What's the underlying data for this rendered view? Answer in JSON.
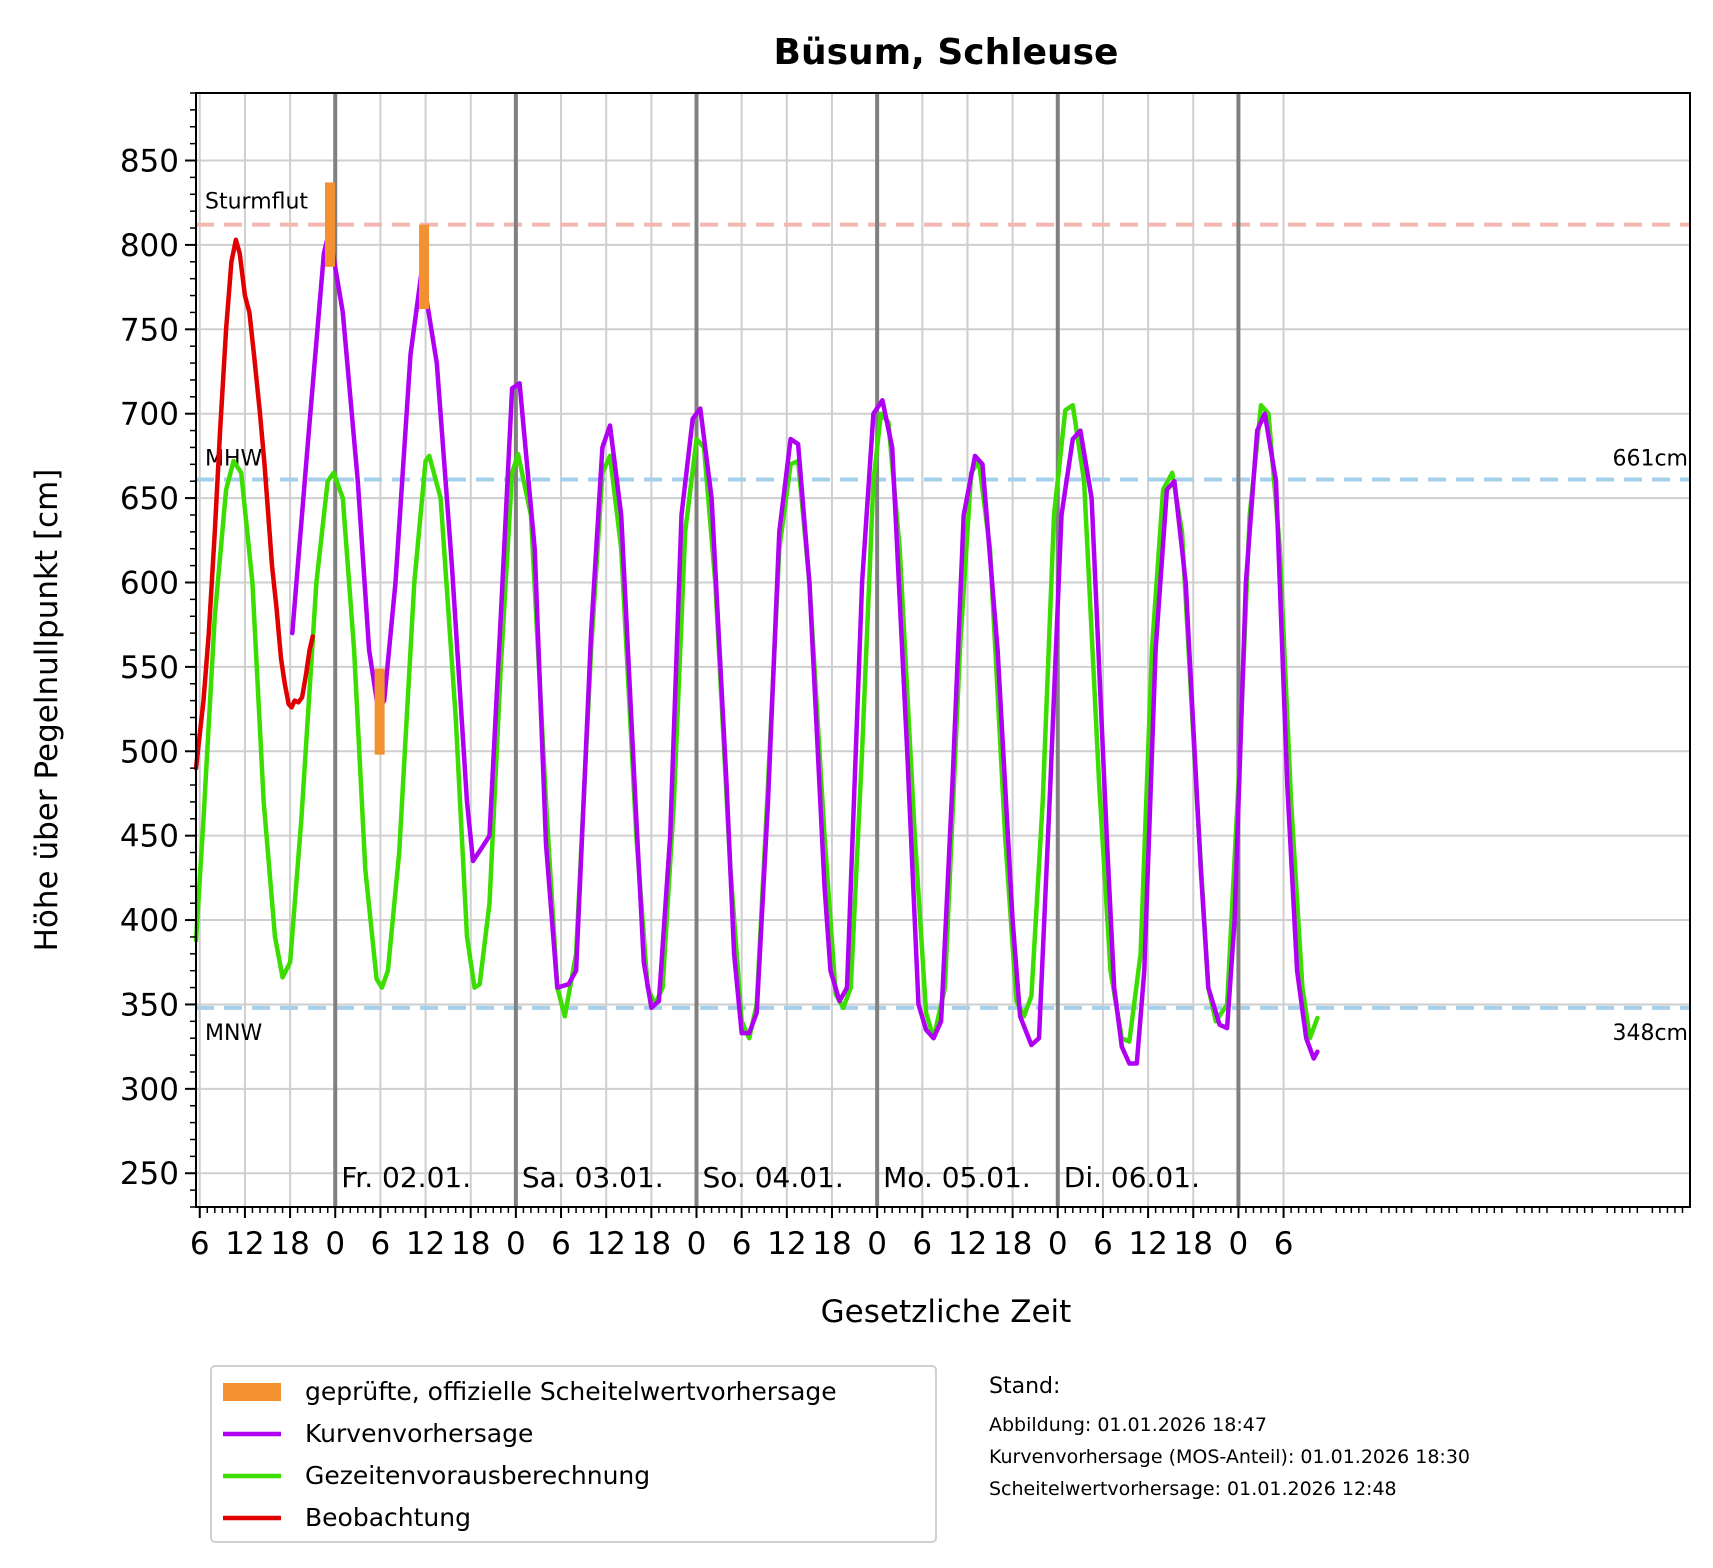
{
  "chart_data": {
    "type": "line",
    "title": "Büsum, Schleuse",
    "xlabel": "Gesetzliche Zeit",
    "ylabel": "Höhe über Pegelnullpunkt [cm]",
    "x_unit": "hours since 01.01. 00:00",
    "xlim": [
      5.5,
      204
    ],
    "ylim": [
      230,
      890
    ],
    "y_ticks": [
      250,
      300,
      350,
      400,
      450,
      500,
      550,
      600,
      650,
      700,
      750,
      800,
      850
    ],
    "x_ticks": [
      {
        "x": 6,
        "label": "6"
      },
      {
        "x": 12,
        "label": "12"
      },
      {
        "x": 18,
        "label": "18"
      },
      {
        "x": 24,
        "label": "0"
      },
      {
        "x": 30,
        "label": "6"
      },
      {
        "x": 36,
        "label": "12"
      },
      {
        "x": 42,
        "label": "18"
      },
      {
        "x": 48,
        "label": "0"
      },
      {
        "x": 54,
        "label": "6"
      },
      {
        "x": 60,
        "label": "12"
      },
      {
        "x": 66,
        "label": "18"
      },
      {
        "x": 72,
        "label": "0"
      },
      {
        "x": 78,
        "label": "6"
      },
      {
        "x": 84,
        "label": "12"
      },
      {
        "x": 90,
        "label": "18"
      },
      {
        "x": 96,
        "label": "0"
      },
      {
        "x": 102,
        "label": "6"
      },
      {
        "x": 108,
        "label": "12"
      },
      {
        "x": 114,
        "label": "18"
      },
      {
        "x": 120,
        "label": "0"
      },
      {
        "x": 126,
        "label": "6"
      },
      {
        "x": 132,
        "label": "12"
      },
      {
        "x": 138,
        "label": "18"
      },
      {
        "x": 144,
        "label": "0"
      },
      {
        "x": 150,
        "label": "6"
      }
    ],
    "day_labels": [
      {
        "x": 24,
        "label": "Fr. 02.01."
      },
      {
        "x": 48,
        "label": "Sa. 03.01."
      },
      {
        "x": 72,
        "label": "So. 04.01."
      },
      {
        "x": 96,
        "label": "Mo. 05.01."
      },
      {
        "x": 120,
        "label": "Di. 06.01."
      }
    ],
    "grid": true,
    "reference_lines": [
      {
        "name": "Sturmflut",
        "y": 812,
        "color": "#f4b6b1",
        "label": "Sturmflut",
        "right_label": ""
      },
      {
        "name": "MHW",
        "y": 661,
        "color": "#a6cfeb",
        "label": "MHW",
        "right_label": "661cm"
      },
      {
        "name": "MNW",
        "y": 348,
        "color": "#a6cfeb",
        "label": "MNW",
        "right_label": "348cm"
      }
    ],
    "series": [
      {
        "name": "Kurvenvorhersage",
        "color": "#b000f4",
        "points": [
          [
            18.3,
            570
          ],
          [
            20.5,
            690
          ],
          [
            22.5,
            795
          ],
          [
            23.2,
            808
          ],
          [
            25,
            760
          ],
          [
            27,
            660
          ],
          [
            28.5,
            560
          ],
          [
            29.7,
            525
          ],
          [
            30.5,
            530
          ],
          [
            32,
            600
          ],
          [
            34,
            735
          ],
          [
            35.5,
            785
          ],
          [
            37.5,
            730
          ],
          [
            39.5,
            610
          ],
          [
            41.5,
            470
          ],
          [
            42.3,
            435
          ],
          [
            43.5,
            443
          ],
          [
            44.5,
            450
          ],
          [
            46,
            580
          ],
          [
            47.5,
            715
          ],
          [
            48.5,
            718
          ],
          [
            50.5,
            620
          ],
          [
            52,
            445
          ],
          [
            53.5,
            360
          ],
          [
            55,
            362
          ],
          [
            56,
            370
          ],
          [
            58,
            570
          ],
          [
            59.5,
            680
          ],
          [
            60.5,
            693
          ],
          [
            62,
            640
          ],
          [
            64,
            460
          ],
          [
            65,
            375
          ],
          [
            66,
            348
          ],
          [
            67,
            352
          ],
          [
            68.5,
            450
          ],
          [
            70,
            640
          ],
          [
            71.5,
            697
          ],
          [
            72.5,
            703
          ],
          [
            74,
            650
          ],
          [
            76,
            480
          ],
          [
            77,
            380
          ],
          [
            78,
            333
          ],
          [
            79,
            333
          ],
          [
            80,
            345
          ],
          [
            81.5,
            470
          ],
          [
            83,
            630
          ],
          [
            84.5,
            685
          ],
          [
            85.5,
            682
          ],
          [
            87,
            600
          ],
          [
            89,
            420
          ],
          [
            89.8,
            370
          ],
          [
            91,
            352
          ],
          [
            92,
            360
          ],
          [
            94,
            600
          ],
          [
            95.5,
            700
          ],
          [
            96.7,
            708
          ],
          [
            98,
            680
          ],
          [
            100,
            500
          ],
          [
            101.5,
            350
          ],
          [
            102.5,
            335
          ],
          [
            103.5,
            330
          ],
          [
            104.5,
            340
          ],
          [
            106,
            480
          ],
          [
            107.5,
            640
          ],
          [
            109,
            675
          ],
          [
            110,
            670
          ],
          [
            112,
            560
          ],
          [
            114,
            400
          ],
          [
            115,
            343
          ],
          [
            116.5,
            326
          ],
          [
            117.5,
            330
          ],
          [
            119,
            480
          ],
          [
            120.5,
            640
          ],
          [
            122,
            685
          ],
          [
            123,
            690
          ],
          [
            124.5,
            650
          ],
          [
            126.5,
            450
          ],
          [
            127.5,
            360
          ],
          [
            128.5,
            325
          ],
          [
            129.5,
            315
          ],
          [
            130.5,
            315
          ],
          [
            131.5,
            370
          ],
          [
            133,
            560
          ],
          [
            134.5,
            655
          ],
          [
            135.5,
            660
          ],
          [
            137,
            600
          ],
          [
            139,
            430
          ],
          [
            140,
            360
          ],
          [
            141.5,
            338
          ],
          [
            142.5,
            336
          ],
          [
            143.5,
            400
          ],
          [
            145,
            600
          ],
          [
            146.5,
            690
          ],
          [
            147.5,
            700
          ],
          [
            149,
            660
          ],
          [
            150.5,
            480
          ],
          [
            151.8,
            370
          ],
          [
            153,
            330
          ],
          [
            154,
            318
          ],
          [
            154.5,
            322
          ]
        ]
      },
      {
        "name": "Gezeitenvorausberechnung",
        "color": "#3cdd00",
        "points": [
          [
            5.5,
            388
          ],
          [
            6.5,
            460
          ],
          [
            8,
            580
          ],
          [
            9.5,
            655
          ],
          [
            10.5,
            672
          ],
          [
            11.5,
            665
          ],
          [
            13,
            600
          ],
          [
            14.5,
            470
          ],
          [
            16,
            390
          ],
          [
            17,
            366
          ],
          [
            18,
            375
          ],
          [
            19.5,
            460
          ],
          [
            21.5,
            600
          ],
          [
            23,
            660
          ],
          [
            23.8,
            665
          ],
          [
            25,
            650
          ],
          [
            26.5,
            560
          ],
          [
            28,
            430
          ],
          [
            29.5,
            365
          ],
          [
            30.2,
            360
          ],
          [
            31,
            370
          ],
          [
            32.5,
            440
          ],
          [
            34.5,
            600
          ],
          [
            36,
            672
          ],
          [
            36.5,
            675
          ],
          [
            38,
            650
          ],
          [
            40,
            520
          ],
          [
            41.5,
            390
          ],
          [
            42.5,
            360
          ],
          [
            43.2,
            362
          ],
          [
            44.5,
            410
          ],
          [
            46,
            550
          ],
          [
            47.5,
            665
          ],
          [
            48.3,
            676
          ],
          [
            50,
            640
          ],
          [
            52,
            470
          ],
          [
            53.5,
            360
          ],
          [
            54.5,
            343
          ],
          [
            56,
            380
          ],
          [
            58,
            560
          ],
          [
            59.5,
            665
          ],
          [
            60.5,
            675
          ],
          [
            62,
            620
          ],
          [
            64,
            450
          ],
          [
            65.5,
            360
          ],
          [
            66.5,
            350
          ],
          [
            67.5,
            360
          ],
          [
            69,
            470
          ],
          [
            70.5,
            630
          ],
          [
            72,
            685
          ],
          [
            73,
            680
          ],
          [
            74.5,
            600
          ],
          [
            76.5,
            430
          ],
          [
            78,
            340
          ],
          [
            79,
            330
          ],
          [
            80,
            350
          ],
          [
            81.5,
            480
          ],
          [
            83,
            620
          ],
          [
            84.5,
            670
          ],
          [
            85.5,
            672
          ],
          [
            87,
            600
          ],
          [
            89,
            450
          ],
          [
            90.5,
            356
          ],
          [
            91.5,
            348
          ],
          [
            92.5,
            360
          ],
          [
            94,
            500
          ],
          [
            95.5,
            660
          ],
          [
            96.5,
            700
          ],
          [
            97.5,
            695
          ],
          [
            99,
            620
          ],
          [
            101,
            450
          ],
          [
            102.5,
            345
          ],
          [
            103.5,
            330
          ],
          [
            105,
            360
          ],
          [
            107,
            560
          ],
          [
            108.5,
            665
          ],
          [
            109.5,
            672
          ],
          [
            111,
            620
          ],
          [
            113,
            450
          ],
          [
            114.5,
            352
          ],
          [
            115.5,
            343
          ],
          [
            116.5,
            355
          ],
          [
            118,
            470
          ],
          [
            119.5,
            640
          ],
          [
            121,
            702
          ],
          [
            122,
            705
          ],
          [
            123.5,
            660
          ],
          [
            125.5,
            480
          ],
          [
            127,
            370
          ],
          [
            128.5,
            330
          ],
          [
            129.5,
            328
          ],
          [
            131,
            380
          ],
          [
            132.5,
            560
          ],
          [
            134,
            655
          ],
          [
            135.2,
            665
          ],
          [
            136.5,
            630
          ],
          [
            138.5,
            470
          ],
          [
            140,
            360
          ],
          [
            141,
            340
          ],
          [
            142.5,
            350
          ],
          [
            144,
            480
          ],
          [
            145.5,
            640
          ],
          [
            147,
            705
          ],
          [
            148,
            700
          ],
          [
            149.5,
            620
          ],
          [
            151,
            470
          ],
          [
            152.5,
            360
          ],
          [
            153.5,
            330
          ],
          [
            154.5,
            342
          ]
        ]
      },
      {
        "name": "Beobachtung",
        "color": "#e00000",
        "points": [
          [
            5.5,
            490
          ],
          [
            6.5,
            530
          ],
          [
            7.2,
            570
          ],
          [
            8,
            630
          ],
          [
            8.7,
            690
          ],
          [
            9.5,
            750
          ],
          [
            10.2,
            790
          ],
          [
            10.8,
            803
          ],
          [
            11.3,
            795
          ],
          [
            12,
            770
          ],
          [
            12.6,
            760
          ],
          [
            13.2,
            735
          ],
          [
            14,
            700
          ],
          [
            14.6,
            670
          ],
          [
            15.1,
            640
          ],
          [
            15.6,
            610
          ],
          [
            16.2,
            585
          ],
          [
            16.8,
            555
          ],
          [
            17.3,
            540
          ],
          [
            17.8,
            528
          ],
          [
            18.2,
            526
          ],
          [
            18.6,
            530
          ],
          [
            19.1,
            529
          ],
          [
            19.6,
            532
          ],
          [
            20.1,
            545
          ],
          [
            20.6,
            560
          ],
          [
            21,
            568
          ]
        ]
      }
    ],
    "scheitelwert_bars": [
      {
        "x": 23.3,
        "low": 787,
        "high": 837
      },
      {
        "x": 29.9,
        "low": 498,
        "high": 549
      },
      {
        "x": 35.8,
        "low": 762,
        "high": 812
      }
    ]
  },
  "legend": {
    "items": [
      {
        "label": "geprüfte, offizielle Scheitelwertvorhersage",
        "color": "#f39030",
        "kind": "bar"
      },
      {
        "label": "Kurvenvorhersage",
        "color": "#b000f4",
        "kind": "line"
      },
      {
        "label": "Gezeitenvorausberechnung",
        "color": "#3cdd00",
        "kind": "line"
      },
      {
        "label": "Beobachtung",
        "color": "#e00000",
        "kind": "line"
      }
    ]
  },
  "stand": {
    "heading": "Stand:",
    "lines": [
      "Abbildung: 01.01.2026 18:47",
      "Kurvenvorhersage (MOS-Anteil): 01.01.2026 18:30",
      "Scheitelwertvorhersage: 01.01.2026 12:48"
    ]
  }
}
